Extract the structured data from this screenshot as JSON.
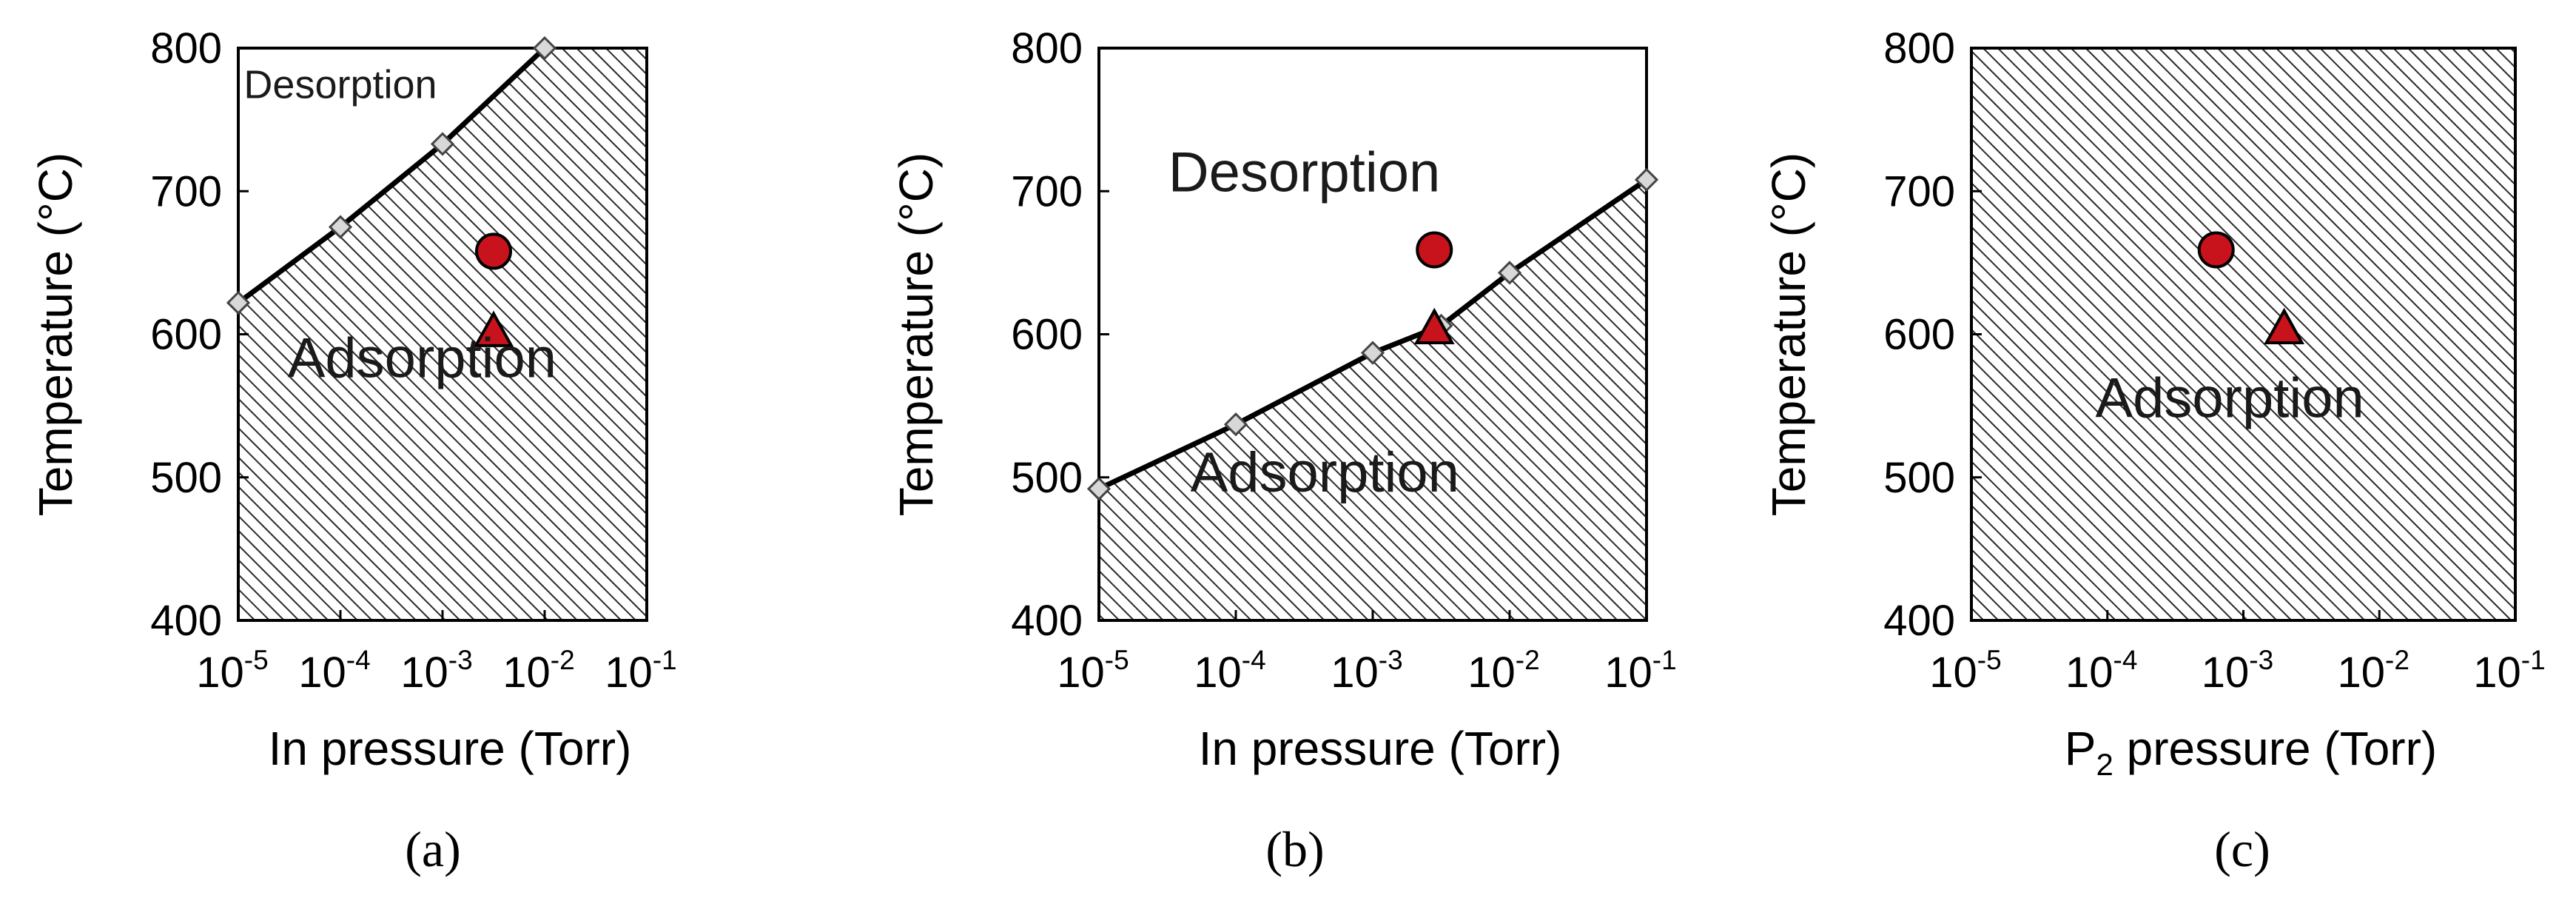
{
  "chart_data": [
    {
      "type": "line",
      "panel_label": "(a)",
      "xlabel": "In pressure (Torr)",
      "xlabel_parts": {
        "main": "In pressure (Torr)",
        "subscript": ""
      },
      "ylabel": "Temperature (°C)",
      "xscale": "log",
      "xlim_exp": [
        -5,
        -1
      ],
      "ylim": [
        400,
        800
      ],
      "x_ticks": [
        {
          "base": "10",
          "exp": "-5"
        },
        {
          "base": "10",
          "exp": "-4"
        },
        {
          "base": "10",
          "exp": "-3"
        },
        {
          "base": "10",
          "exp": "-2"
        },
        {
          "base": "10",
          "exp": "-1"
        }
      ],
      "y_ticks": [
        "800",
        "700",
        "600",
        "500",
        "400"
      ],
      "hatch_below_boundary": true,
      "boundary": {
        "x_exp": [
          -5,
          -4,
          -3,
          -2
        ],
        "y": [
          622,
          675,
          733,
          800
        ],
        "extend_to_top": true
      },
      "points": [
        {
          "marker": "circle",
          "x_exp": -2.5,
          "y": 658,
          "color": "#c8121c"
        },
        {
          "marker": "triangle",
          "x_exp": -2.5,
          "y": 602,
          "color": "#c8121c"
        }
      ],
      "region_labels": [
        {
          "text": "Desorption",
          "x_exp": -4.0,
          "y": 765,
          "size": "small"
        },
        {
          "text": "Adsorption",
          "x_exp": -3.2,
          "y": 570,
          "size": "large"
        }
      ]
    },
    {
      "type": "line",
      "panel_label": "(b)",
      "xlabel": "In pressure (Torr)",
      "xlabel_parts": {
        "main": "In pressure (Torr)",
        "subscript": ""
      },
      "ylabel": "Temperature (°C)",
      "xscale": "log",
      "xlim_exp": [
        -5,
        -1
      ],
      "ylim": [
        400,
        800
      ],
      "x_ticks": [
        {
          "base": "10",
          "exp": "-5"
        },
        {
          "base": "10",
          "exp": "-4"
        },
        {
          "base": "10",
          "exp": "-3"
        },
        {
          "base": "10",
          "exp": "-2"
        },
        {
          "base": "10",
          "exp": "-1"
        }
      ],
      "y_ticks": [
        "800",
        "700",
        "600",
        "500",
        "400"
      ],
      "hatch_below_boundary": true,
      "boundary": {
        "x_exp": [
          -5,
          -4,
          -3,
          -2.5,
          -2,
          -1
        ],
        "y": [
          492,
          537,
          587,
          606,
          643,
          708
        ],
        "extend_to_top": false
      },
      "points": [
        {
          "marker": "circle",
          "x_exp": -2.55,
          "y": 659,
          "color": "#c8121c"
        },
        {
          "marker": "triangle",
          "x_exp": -2.55,
          "y": 604,
          "color": "#c8121c"
        }
      ],
      "region_labels": [
        {
          "text": "Desorption",
          "x_exp": -3.5,
          "y": 700,
          "size": "large"
        },
        {
          "text": "Adsorption",
          "x_exp": -3.35,
          "y": 490,
          "size": "large"
        }
      ]
    },
    {
      "type": "scatter",
      "panel_label": "(c)",
      "xlabel": "P2 pressure (Torr)",
      "xlabel_parts": {
        "main": "P",
        "subscript": "2",
        "rest": " pressure (Torr)"
      },
      "ylabel": "Temperature (°C)",
      "xscale": "log",
      "xlim_exp": [
        -5,
        -1
      ],
      "ylim": [
        400,
        800
      ],
      "x_ticks": [
        {
          "base": "10",
          "exp": "-5"
        },
        {
          "base": "10",
          "exp": "-4"
        },
        {
          "base": "10",
          "exp": "-3"
        },
        {
          "base": "10",
          "exp": "-2"
        },
        {
          "base": "10",
          "exp": "-1"
        }
      ],
      "y_ticks": [
        "800",
        "700",
        "600",
        "500",
        "400"
      ],
      "hatch_full": true,
      "points": [
        {
          "marker": "circle",
          "x_exp": -3.2,
          "y": 659,
          "color": "#c8121c"
        },
        {
          "marker": "triangle",
          "x_exp": -2.7,
          "y": 604,
          "color": "#c8121c"
        }
      ],
      "region_labels": [
        {
          "text": "Adsorption",
          "x_exp": -3.1,
          "y": 542,
          "size": "large"
        }
      ]
    }
  ]
}
